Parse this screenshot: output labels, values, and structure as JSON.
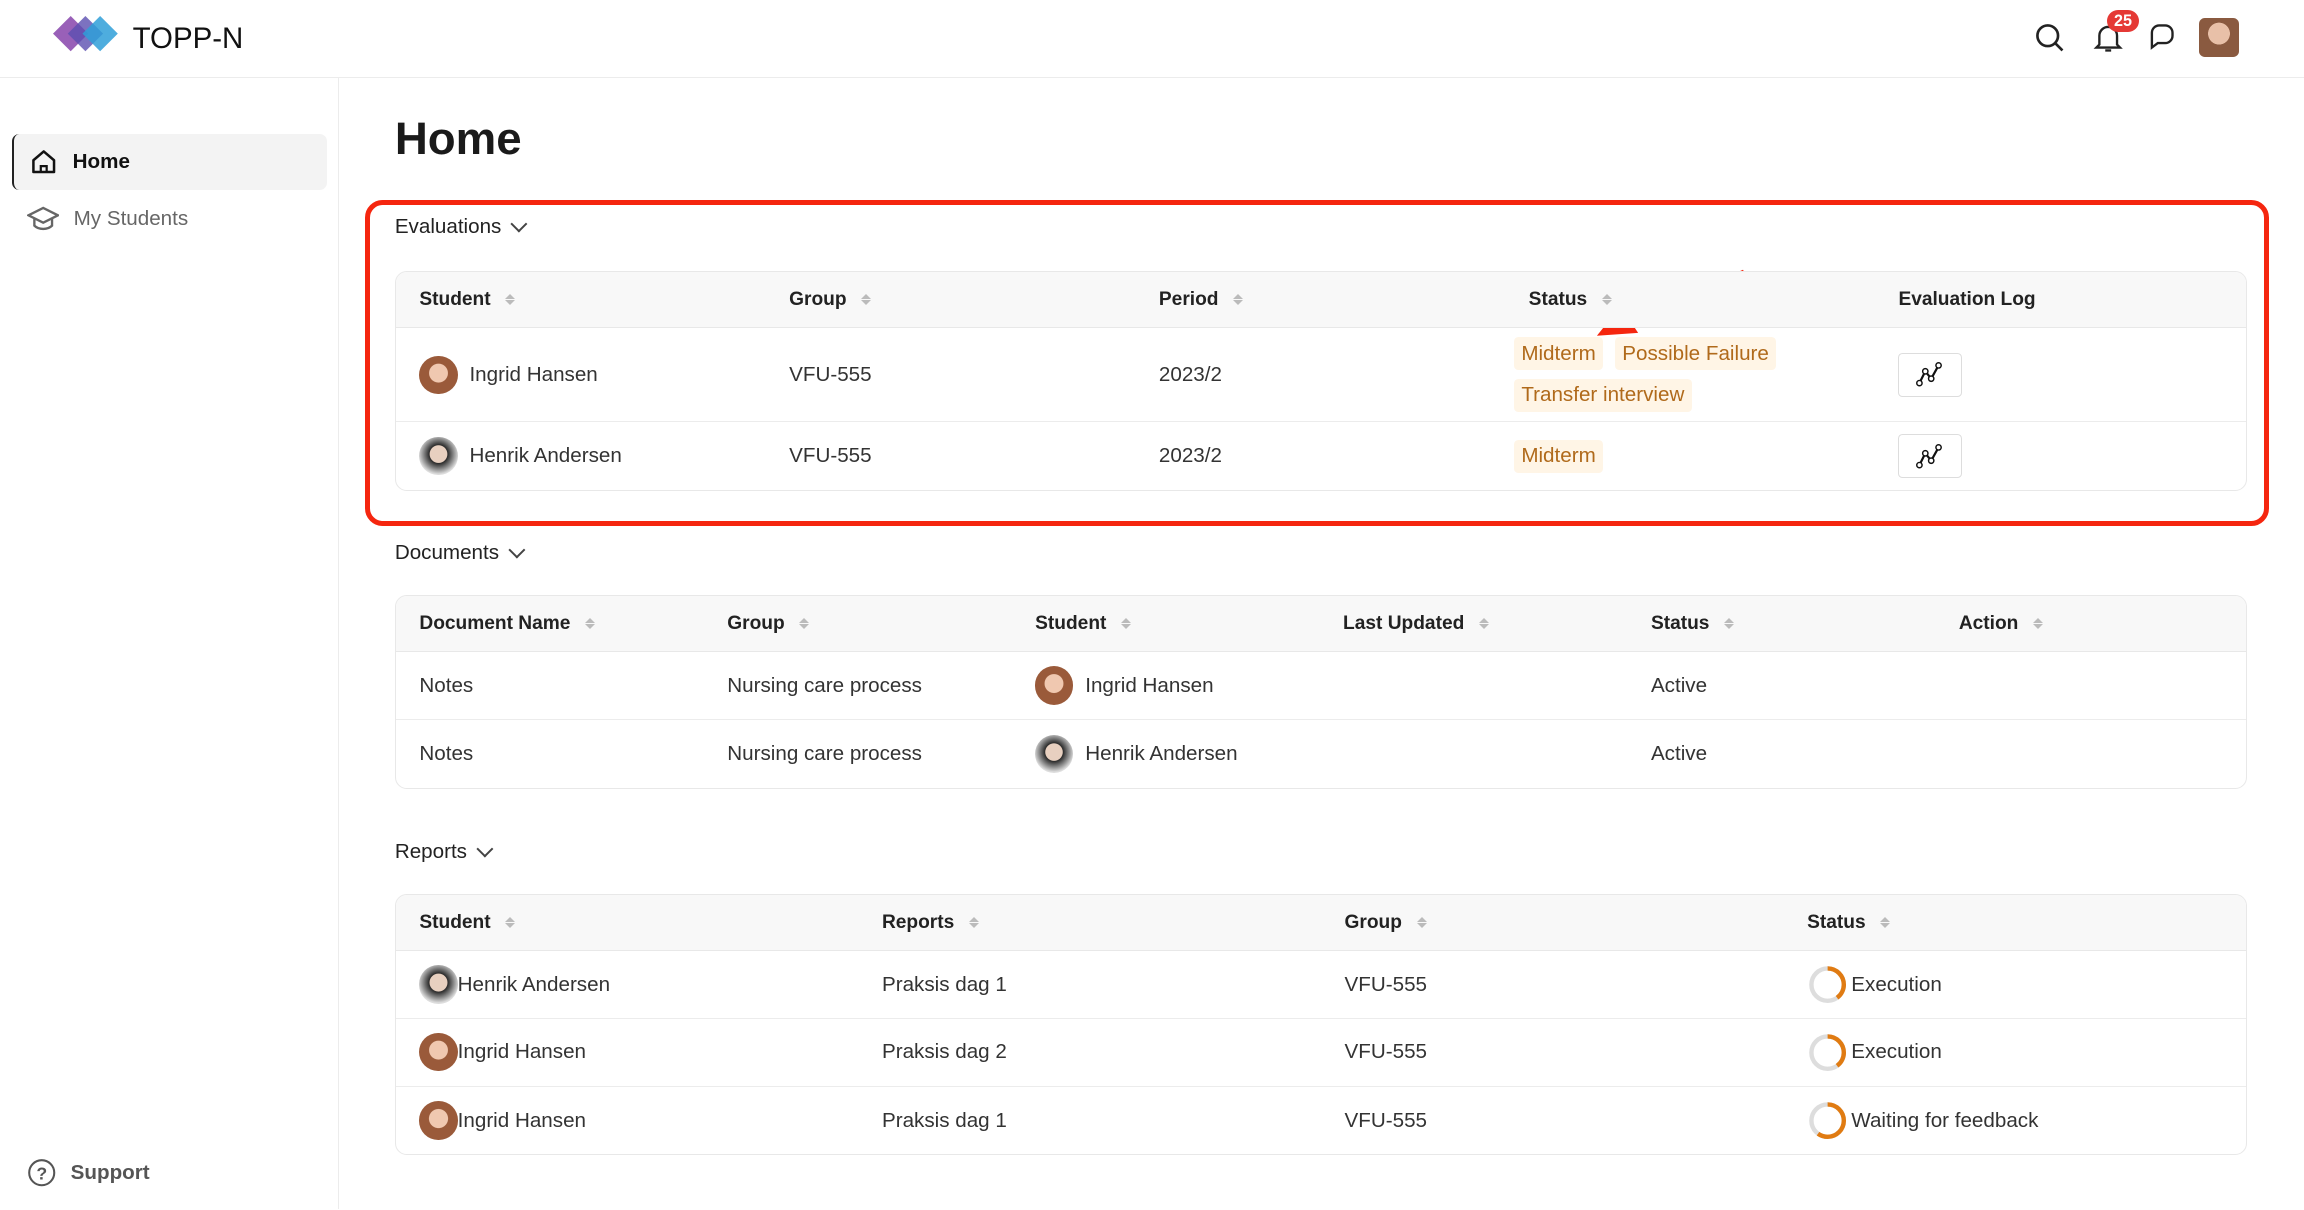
{
  "header": {
    "brand": "TOPP-N",
    "notification_count": "25",
    "icons": [
      "search-icon",
      "bell-icon",
      "chat-icon",
      "user-avatar"
    ]
  },
  "sidebar": {
    "items": [
      {
        "label": "Home",
        "icon": "home-icon",
        "active": true
      },
      {
        "label": "My Students",
        "icon": "graduation-cap-icon"
      }
    ],
    "support": "Support"
  },
  "page": {
    "title": "Home"
  },
  "evaluations": {
    "title": "Evaluations",
    "headers": [
      "Student",
      "Group",
      "Period",
      "Status",
      "Evaluation Log"
    ],
    "rows": [
      {
        "student": "Ingrid Hansen",
        "group": "VFU-555",
        "period": "2023/2",
        "statuses": [
          "Midterm",
          "Possible Failure",
          "Transfer interview"
        ]
      },
      {
        "student": "Henrik Andersen",
        "group": "VFU-555",
        "period": "2023/2",
        "statuses": [
          "Midterm"
        ]
      }
    ]
  },
  "documents": {
    "title": "Documents",
    "headers": [
      "Document Name",
      "Group",
      "Student",
      "Last Updated",
      "Status",
      "Action"
    ],
    "rows": [
      {
        "name": "Notes",
        "group": "Nursing care process",
        "student": "Ingrid Hansen",
        "last_updated": "",
        "status": "Active"
      },
      {
        "name": "Notes",
        "group": "Nursing care process",
        "student": "Henrik Andersen",
        "last_updated": "",
        "status": "Active"
      }
    ]
  },
  "reports": {
    "title": "Reports",
    "headers": [
      "Student",
      "Reports",
      "Group",
      "Status"
    ],
    "rows": [
      {
        "student": "Henrik Andersen",
        "report": "Praksis dag 1",
        "group": "VFU-555",
        "status": "Execution",
        "progress": 0.4
      },
      {
        "student": "Ingrid Hansen",
        "report": "Praksis dag 2",
        "group": "VFU-555",
        "status": "Execution",
        "progress": 0.4
      },
      {
        "student": "Ingrid Hansen",
        "report": "Praksis dag 1",
        "group": "VFU-555",
        "status": "Waiting for feedback",
        "progress": 0.6
      }
    ]
  },
  "colors": {
    "highlight": "#f5260f",
    "tag_text": "#b06a1b",
    "tag_bg": "#fff5e6",
    "progress": "#e07b12"
  }
}
